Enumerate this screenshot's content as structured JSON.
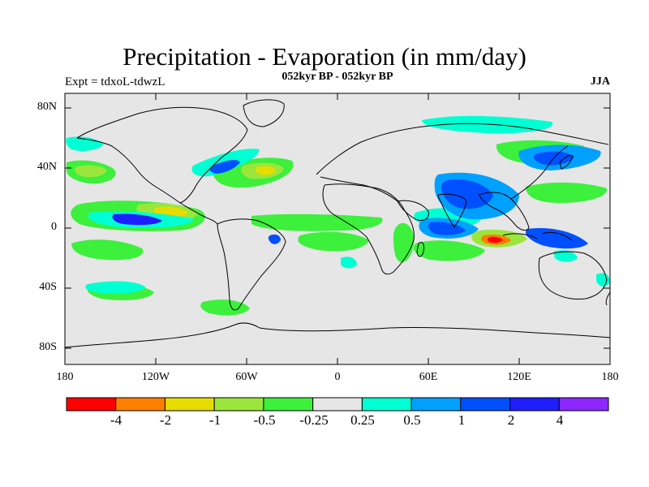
{
  "title": "Precipitation - Evaporation (in mm/day)",
  "subtitle": "052kyr BP - 052kyr BP",
  "experiment_label": "Expt = tdxoL-tdwzL",
  "season_label": "JJA",
  "map": {
    "projection": "cylindrical-equidistant",
    "background_color": "#e6e6e6",
    "coastline_color": "#000000",
    "lat_range": [
      -90,
      90
    ],
    "lon_range": [
      -180,
      180
    ],
    "lat_tick_labels": [
      "80N",
      "40N",
      "0",
      "40S",
      "80S"
    ],
    "lat_tick_values": [
      80,
      40,
      0,
      -40,
      -80
    ],
    "lon_tick_labels": [
      "180",
      "120W",
      "60W",
      "0",
      "60E",
      "120E",
      "180"
    ],
    "lon_tick_values": [
      -180,
      -120,
      -60,
      0,
      60,
      120,
      180
    ]
  },
  "colorbar": {
    "colors": [
      "#ff0000",
      "#ff8000",
      "#e6dc00",
      "#9be63c",
      "#3cf03c",
      "#e6e6e6",
      "#00ffd2",
      "#00a0ff",
      "#0050ff",
      "#1e1eff",
      "#8c28ff"
    ],
    "labels": [
      "-4",
      "-2",
      "-1",
      "-0.5",
      "-0.25",
      "0.25",
      "0.5",
      "1",
      "2",
      "4"
    ]
  }
}
